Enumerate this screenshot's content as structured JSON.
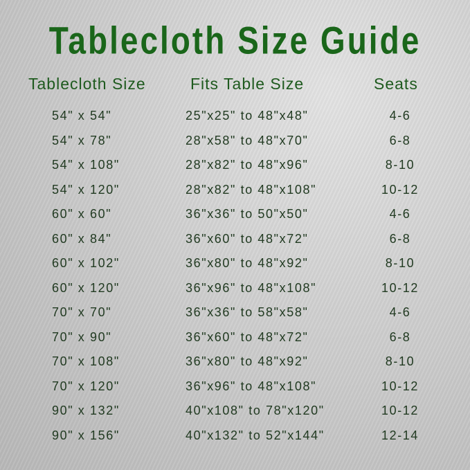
{
  "title": "Tablecloth Size Guide",
  "colors": {
    "title": "#1a661a",
    "header": "#1e5a1e",
    "text": "#213a21"
  },
  "headers": {
    "size": "Tablecloth Size",
    "fits": "Fits Table Size",
    "seats": "Seats"
  },
  "rows": [
    {
      "size": "54\" x 54\"",
      "fits": "25\"x25\" to 48\"x48\"",
      "seats": "4-6"
    },
    {
      "size": "54\" x 78\"",
      "fits": "28\"x58\" to 48\"x70\"",
      "seats": "6-8"
    },
    {
      "size": "54\" x 108\"",
      "fits": "28\"x82\" to 48\"x96\"",
      "seats": "8-10"
    },
    {
      "size": "54\" x 120\"",
      "fits": "28\"x82\" to 48\"x108\"",
      "seats": "10-12"
    },
    {
      "size": "60\" x 60\"",
      "fits": "36\"x36\" to 50\"x50\"",
      "seats": "4-6"
    },
    {
      "size": "60\" x 84\"",
      "fits": "36\"x60\" to 48\"x72\"",
      "seats": "6-8"
    },
    {
      "size": "60\" x 102\"",
      "fits": "36\"x80\" to 48\"x92\"",
      "seats": "8-10"
    },
    {
      "size": "60\" x 120\"",
      "fits": "36\"x96\" to 48\"x108\"",
      "seats": "10-12"
    },
    {
      "size": "70\" x 70\"",
      "fits": "36\"x36\" to 58\"x58\"",
      "seats": "4-6"
    },
    {
      "size": "70\" x 90\"",
      "fits": "36\"x60\" to 48\"x72\"",
      "seats": "6-8"
    },
    {
      "size": "70\" x 108\"",
      "fits": "36\"x80\" to 48\"x92\"",
      "seats": "8-10"
    },
    {
      "size": "70\" x 120\"",
      "fits": "36\"x96\" to 48\"x108\"",
      "seats": "10-12"
    },
    {
      "size": "90\" x 132\"",
      "fits": "40\"x108\" to 78\"x120\"",
      "seats": "10-12"
    },
    {
      "size": "90\" x 156\"",
      "fits": "40\"x132\" to 52\"x144\"",
      "seats": "12-14"
    }
  ]
}
